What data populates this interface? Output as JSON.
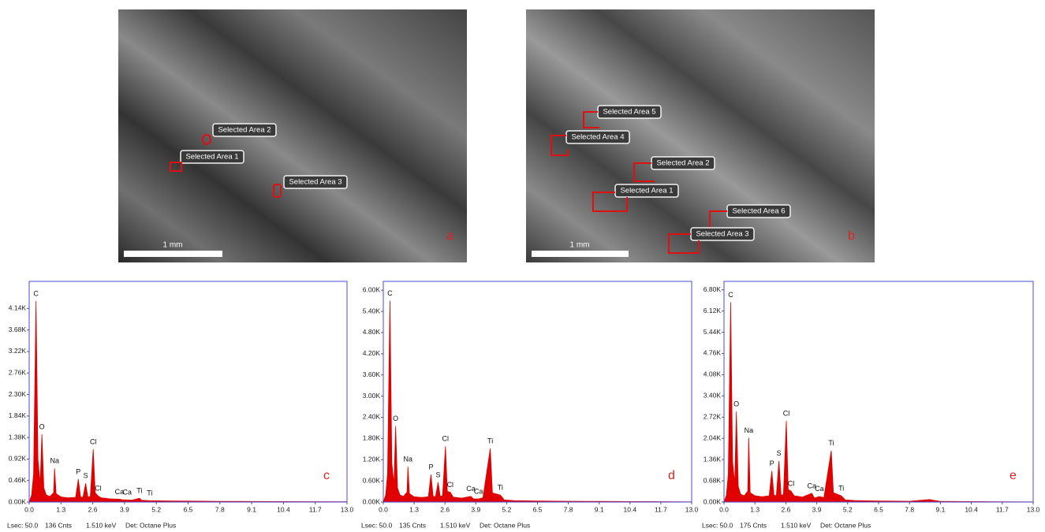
{
  "images": [
    {
      "panel": "a",
      "scale_bar": "1 mm",
      "areas": [
        "Selected Area 2",
        "Selected Area 1",
        "Selected Area 3"
      ]
    },
    {
      "panel": "b",
      "scale_bar": "1 mm",
      "areas": [
        "Selected Area 5",
        "Selected Area 4",
        "Selected Area 2",
        "Selected Area 1",
        "Selected Area 6",
        "Selected Area 3"
      ]
    }
  ],
  "chart_data": [
    {
      "type": "area",
      "panel_label": "c",
      "color": "#e00000",
      "x": [
        0.0,
        0.1,
        0.18,
        0.28,
        0.36,
        0.45,
        0.52,
        0.6,
        0.7,
        0.85,
        1.0,
        1.04,
        1.1,
        1.3,
        1.6,
        1.9,
        2.01,
        2.1,
        2.2,
        2.31,
        2.4,
        2.5,
        2.62,
        2.7,
        2.82,
        2.95,
        3.3,
        3.69,
        3.8,
        4.01,
        4.2,
        4.51,
        4.6,
        4.93,
        5.1,
        5.5,
        6.5,
        7.8,
        8.64,
        9.1,
        10.4,
        11.7,
        13.0
      ],
      "values": [
        0,
        150,
        600,
        4300,
        900,
        400,
        1450,
        300,
        150,
        120,
        200,
        720,
        180,
        110,
        90,
        100,
        490,
        110,
        100,
        400,
        110,
        120,
        1130,
        200,
        130,
        90,
        70,
        60,
        50,
        45,
        40,
        80,
        40,
        30,
        30,
        25,
        20,
        15,
        14,
        12,
        10,
        8,
        5
      ],
      "xlim": [
        0,
        13
      ],
      "ylim": [
        0,
        4720
      ],
      "xticks": [
        {
          "value": 0,
          "label": "0.0"
        },
        1.3,
        2.6,
        3.9,
        5.2,
        6.5,
        7.8,
        9.1,
        10.4,
        11.7,
        {
          "value": 13,
          "label": "13.0"
        }
      ],
      "yticks": [
        {
          "value": 0,
          "label": "0.00K"
        },
        {
          "value": 460,
          "label": "0.46K"
        },
        {
          "value": 920,
          "label": "0.92K"
        },
        {
          "value": 1380,
          "label": "1.38K"
        },
        {
          "value": 1840,
          "label": "1.84K"
        },
        {
          "value": 2300,
          "label": "2.30K"
        },
        {
          "value": 2760,
          "label": "2.76K"
        },
        {
          "value": 3220,
          "label": "3.22K"
        },
        {
          "value": 3680,
          "label": "3.68K"
        },
        {
          "value": 4140,
          "label": "4.14K"
        }
      ],
      "annotations": [
        {
          "text": "C",
          "x": 0.28
        },
        {
          "text": "O",
          "x": 0.52
        },
        {
          "text": "Na",
          "x": 1.04
        },
        {
          "text": "P",
          "x": 2.01
        },
        {
          "text": "S",
          "x": 2.31
        },
        {
          "text": "Cl",
          "x": 2.62
        },
        {
          "text": "Cl",
          "x": 2.82
        },
        {
          "text": "Ca",
          "x": 3.69
        },
        {
          "text": "Ca",
          "x": 4.01
        },
        {
          "text": "Ti",
          "x": 4.51
        },
        {
          "text": "Ti",
          "x": 4.93
        }
      ],
      "footer": [
        "Lsec: 50.0",
        "136 Cnts",
        "1.510 keV",
        "Det: Octane Plus"
      ]
    },
    {
      "type": "area",
      "panel_label": "d",
      "color": "#e00000",
      "x": [
        0.0,
        0.1,
        0.18,
        0.28,
        0.36,
        0.45,
        0.52,
        0.6,
        0.7,
        0.85,
        1.0,
        1.04,
        1.1,
        1.3,
        1.6,
        1.9,
        2.01,
        2.1,
        2.2,
        2.31,
        2.4,
        2.5,
        2.62,
        2.7,
        2.82,
        2.95,
        3.3,
        3.69,
        3.8,
        4.01,
        4.2,
        4.51,
        4.6,
        4.93,
        5.1,
        5.5,
        6.5,
        7.8,
        8.64,
        9.1,
        10.4,
        11.7,
        13.0
      ],
      "values": [
        0,
        200,
        800,
        5700,
        1100,
        500,
        2150,
        400,
        200,
        160,
        280,
        1000,
        240,
        150,
        130,
        150,
        780,
        160,
        150,
        560,
        160,
        180,
        1580,
        300,
        280,
        140,
        110,
        160,
        90,
        90,
        120,
        1520,
        260,
        200,
        60,
        40,
        30,
        22,
        20,
        18,
        14,
        10,
        6
      ],
      "xlim": [
        0,
        13
      ],
      "ylim": [
        0,
        6250
      ],
      "xticks": [
        {
          "value": 0,
          "label": "0.0"
        },
        1.3,
        2.6,
        3.9,
        5.2,
        6.5,
        7.8,
        9.1,
        10.4,
        11.7,
        {
          "value": 13,
          "label": "13.0"
        }
      ],
      "yticks": [
        {
          "value": 0,
          "label": "0.00K"
        },
        {
          "value": 600,
          "label": "0.60K"
        },
        {
          "value": 1200,
          "label": "1.20K"
        },
        {
          "value": 1800,
          "label": "1.80K"
        },
        {
          "value": 2400,
          "label": "2.40K"
        },
        {
          "value": 3000,
          "label": "3.00K"
        },
        {
          "value": 3600,
          "label": "3.60K"
        },
        {
          "value": 4200,
          "label": "4.20K"
        },
        {
          "value": 4800,
          "label": "4.80K"
        },
        {
          "value": 5400,
          "label": "5.40K"
        },
        {
          "value": 6000,
          "label": "6.00K"
        }
      ],
      "annotations": [
        {
          "text": "C",
          "x": 0.28
        },
        {
          "text": "O",
          "x": 0.52
        },
        {
          "text": "Na",
          "x": 1.04
        },
        {
          "text": "P",
          "x": 2.01
        },
        {
          "text": "S",
          "x": 2.31
        },
        {
          "text": "Cl",
          "x": 2.62
        },
        {
          "text": "Cl",
          "x": 2.82
        },
        {
          "text": "Ca",
          "x": 3.69
        },
        {
          "text": "Ca",
          "x": 4.01
        },
        {
          "text": "Ti",
          "x": 4.51
        },
        {
          "text": "Ti",
          "x": 4.93
        }
      ],
      "footer": [
        "Lsec: 50.0",
        "135 Cnts",
        "1.510 keV",
        "Det: Octane Plus"
      ]
    },
    {
      "type": "area",
      "panel_label": "e",
      "color": "#e00000",
      "x": [
        0.0,
        0.1,
        0.18,
        0.28,
        0.36,
        0.45,
        0.52,
        0.6,
        0.7,
        0.85,
        1.0,
        1.04,
        1.1,
        1.3,
        1.6,
        1.9,
        2.01,
        2.1,
        2.2,
        2.31,
        2.4,
        2.5,
        2.62,
        2.7,
        2.82,
        2.95,
        3.3,
        3.69,
        3.8,
        4.01,
        4.2,
        4.51,
        4.6,
        4.93,
        5.1,
        5.5,
        6.5,
        7.8,
        8.64,
        9.1,
        10.4,
        11.7,
        13.0
      ],
      "values": [
        0,
        220,
        900,
        6400,
        1300,
        600,
        2900,
        500,
        250,
        200,
        350,
        2060,
        300,
        200,
        170,
        200,
        1000,
        220,
        200,
        1320,
        220,
        240,
        2600,
        400,
        350,
        200,
        160,
        280,
        130,
        180,
        140,
        1650,
        300,
        200,
        70,
        50,
        35,
        25,
        80,
        20,
        15,
        10,
        6
      ],
      "xlim": [
        0,
        13
      ],
      "ylim": [
        0,
        7070
      ],
      "xticks": [
        {
          "value": 0,
          "label": "0.0"
        },
        1.3,
        2.6,
        3.9,
        5.2,
        6.5,
        7.8,
        9.1,
        10.4,
        11.7,
        {
          "value": 13,
          "label": "13.0"
        }
      ],
      "yticks": [
        {
          "value": 0,
          "label": "0.00K"
        },
        {
          "value": 680,
          "label": "0.68K"
        },
        {
          "value": 1360,
          "label": "1.36K"
        },
        {
          "value": 2040,
          "label": "2.04K"
        },
        {
          "value": 2720,
          "label": "2.72K"
        },
        {
          "value": 3400,
          "label": "3.40K"
        },
        {
          "value": 4080,
          "label": "4.08K"
        },
        {
          "value": 4760,
          "label": "4.76K"
        },
        {
          "value": 5440,
          "label": "5.44K"
        },
        {
          "value": 6120,
          "label": "6.12K"
        },
        {
          "value": 6800,
          "label": "6.80K"
        }
      ],
      "annotations": [
        {
          "text": "C",
          "x": 0.28
        },
        {
          "text": "O",
          "x": 0.52
        },
        {
          "text": "Na",
          "x": 1.04
        },
        {
          "text": "P",
          "x": 2.01
        },
        {
          "text": "S",
          "x": 2.31
        },
        {
          "text": "Cl",
          "x": 2.62
        },
        {
          "text": "Cl",
          "x": 2.82
        },
        {
          "text": "Ca",
          "x": 3.69
        },
        {
          "text": "Ca",
          "x": 4.01
        },
        {
          "text": "Ti",
          "x": 4.51
        },
        {
          "text": "Ti",
          "x": 4.93
        }
      ],
      "footer": [
        "Lsec: 50.0",
        "175 Cnts",
        "1.510 keV",
        "Det: Octane Plus"
      ]
    }
  ]
}
